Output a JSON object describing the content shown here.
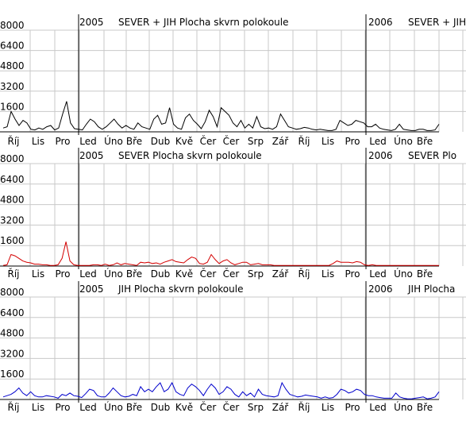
{
  "chart_data": {
    "type": "line",
    "grid": true,
    "x_ticks": [
      "Říj",
      "Lis",
      "Pro",
      "Led",
      "Úno",
      "Bře",
      "Dub",
      "Kvě",
      "Čer",
      "Čer",
      "Srp",
      "Zář",
      "Říj",
      "Lis",
      "Pro",
      "Led",
      "Úno",
      "Bře"
    ],
    "year_markers": [
      {
        "year": "2005",
        "at_index": 3
      },
      {
        "year": "2006",
        "at_index": 15
      }
    ],
    "y_ticks": [
      1600,
      3200,
      4800,
      6400,
      8000
    ],
    "panels": [
      {
        "title_2005": "2005",
        "title_text": "SEVER + JIH   Plocha skvrn polokoule",
        "title_2006": "2006",
        "title_text_2006": "SEVER + JIH",
        "ylim": [
          0,
          8000
        ],
        "series": [
          {
            "color": "#000000",
            "values": [
              300,
              400,
              1600,
              1000,
              500,
              900,
              700,
              200,
              150,
              300,
              200,
              400,
              500,
              150,
              300,
              1400,
              2400,
              700,
              250,
              200,
              150,
              600,
              1000,
              800,
              400,
              200,
              400,
              700,
              1000,
              600,
              300,
              500,
              300,
              200,
              700,
              400,
              300,
              200,
              1000,
              1300,
              600,
              700,
              1900,
              600,
              300,
              200,
              1100,
              1400,
              900,
              600,
              250,
              800,
              1700,
              1200,
              400,
              1900,
              1600,
              1300,
              700,
              400,
              900,
              300,
              600,
              300,
              1200,
              400,
              250,
              300,
              200,
              400,
              1400,
              900,
              400,
              300,
              200,
              250,
              350,
              300,
              200,
              150,
              200,
              150,
              100,
              100,
              200,
              900,
              700,
              500,
              600,
              900,
              800,
              700,
              400,
              400,
              600,
              300,
              200,
              150,
              100,
              200,
              600,
              200,
              150,
              100,
              100,
              200,
              200,
              100,
              100,
              150,
              600
            ]
          }
        ]
      },
      {
        "title_2005": "2005",
        "title_text": "SEVER   Plocha skvrn polokoule",
        "title_2006": "2006",
        "title_text_2006": "SEVER   Plo",
        "ylim": [
          0,
          8000
        ],
        "series": [
          {
            "color": "#d40000",
            "values": [
              50,
              100,
              900,
              800,
              600,
              400,
              300,
              250,
              150,
              150,
              100,
              100,
              50,
              50,
              100,
              600,
              1900,
              400,
              100,
              50,
              50,
              50,
              50,
              100,
              100,
              50,
              150,
              50,
              100,
              250,
              100,
              200,
              150,
              100,
              50,
              300,
              250,
              300,
              200,
              250,
              150,
              300,
              400,
              500,
              350,
              300,
              250,
              500,
              700,
              600,
              200,
              150,
              300,
              900,
              500,
              200,
              400,
              500,
              250,
              100,
              200,
              300,
              300,
              100,
              150,
              200,
              100,
              100,
              100,
              50,
              50,
              50,
              50,
              50,
              50,
              50,
              50,
              50,
              50,
              50,
              50,
              50,
              50,
              50,
              200,
              400,
              300,
              300,
              300,
              250,
              350,
              300,
              100,
              50,
              100,
              50,
              50,
              50,
              50,
              50,
              50,
              50,
              50,
              50,
              50,
              50,
              50,
              50,
              50,
              50,
              50,
              50
            ]
          }
        ]
      },
      {
        "title_2005": "2005",
        "title_text": "JIH   Plocha skvrn polokoule",
        "title_2006": "2006",
        "title_text_2006": "JIH   Plocha",
        "ylim": [
          0,
          8000
        ],
        "series": [
          {
            "color": "#0000cc",
            "values": [
              200,
              300,
              400,
              600,
              900,
              500,
              300,
              600,
              300,
              200,
              200,
              300,
              250,
              200,
              100,
              400,
              300,
              500,
              300,
              250,
              150,
              450,
              800,
              700,
              300,
              200,
              200,
              500,
              900,
              600,
              300,
              200,
              250,
              400,
              300,
              1000,
              600,
              800,
              600,
              1000,
              1300,
              600,
              800,
              1300,
              600,
              400,
              300,
              900,
              1200,
              1000,
              700,
              300,
              800,
              1200,
              900,
              400,
              600,
              1000,
              800,
              400,
              200,
              600,
              300,
              500,
              200,
              800,
              400,
              300,
              250,
              200,
              300,
              1300,
              800,
              400,
              300,
              200,
              250,
              350,
              300,
              250,
              200,
              100,
              200,
              100,
              150,
              400,
              800,
              700,
              500,
              600,
              800,
              700,
              400,
              300,
              300,
              200,
              150,
              100,
              100,
              100,
              500,
              200,
              100,
              50,
              50,
              100,
              150,
              200,
              50,
              100,
              200,
              600
            ]
          }
        ]
      }
    ]
  }
}
